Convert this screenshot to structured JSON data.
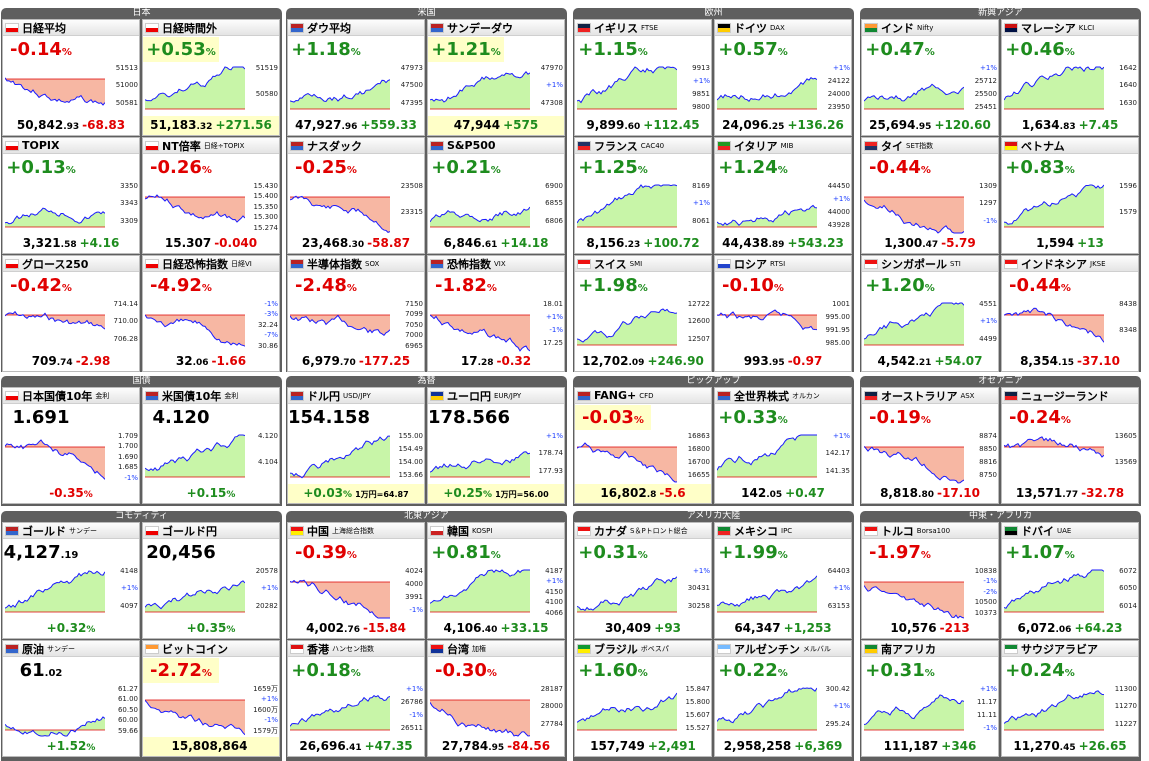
{
  "colors": {
    "up": "#1e8c1e",
    "down": "#e00000",
    "line": "#1a1aff",
    "fill_up": "#c8f5a8",
    "fill_down": "#f7b7a3",
    "header": "#5f5f5f",
    "highlight": "#ffffc8"
  },
  "groups": [
    {
      "title": "日本",
      "tiles": [
        {
          "name": "日経平均",
          "sub": "",
          "flag": "jp-flag",
          "change": "-0.14",
          "price_main": "50,842",
          "price_dec": ".93",
          "price_change": "-68.83",
          "trend": "down",
          "axis": [
            "51513",
            "51000",
            "50581"
          ],
          "hl": false
        },
        {
          "name": "日経時間外",
          "sub": "",
          "flag": "jp-flag",
          "change": "+0.53",
          "price_main": "51,183",
          "price_dec": ".32",
          "price_change": "+271.56",
          "trend": "up",
          "axis": [
            "51519",
            "50580"
          ],
          "hl": true
        },
        {
          "name": "TOPIX",
          "sub": "",
          "flag": "jp-flag",
          "change": "+0.13",
          "price_main": "3,321",
          "price_dec": ".58",
          "price_change": "+4.16",
          "trend": "up",
          "axis": [
            "3350",
            "3343",
            "3309"
          ],
          "hl": false
        },
        {
          "name": "NT倍率",
          "sub": "日経÷TOPIX",
          "flag": "jp-flag",
          "change": "-0.26",
          "price_main": "15.307",
          "price_dec": "",
          "price_change": "-0.040",
          "trend": "down",
          "axis": [
            "15.430",
            "15.400",
            "15.350",
            "15.300",
            "15.274"
          ],
          "hl": false
        },
        {
          "name": "グロース250",
          "sub": "",
          "flag": "jp-flag",
          "change": "-0.42",
          "price_main": "709",
          "price_dec": ".74",
          "price_change": "-2.98",
          "trend": "down",
          "axis": [
            "714.14",
            "710.00",
            "706.28"
          ],
          "hl": false
        },
        {
          "name": "日経恐怖指数",
          "sub": "日経VI",
          "flag": "jp-flag",
          "change": "-4.92",
          "price_main": "32",
          "price_dec": ".06",
          "price_change": "-1.66",
          "trend": "down",
          "axis": [
            "-1%",
            "-3%",
            "32.24",
            "-7%",
            "30.86"
          ],
          "hl": false
        }
      ]
    },
    {
      "title": "米国",
      "tiles": [
        {
          "name": "ダウ平均",
          "sub": "",
          "flag": "us-flag",
          "change": "+1.18",
          "price_main": "47,927",
          "price_dec": ".96",
          "price_change": "+559.33",
          "trend": "up",
          "axis": [
            "47973",
            "47500",
            "47395"
          ],
          "hl": false
        },
        {
          "name": "サンデーダウ",
          "sub": "",
          "flag": "us-flag",
          "change": "+1.21",
          "price_main": "47,944",
          "price_dec": "",
          "price_change": "+575",
          "trend": "up",
          "axis": [
            "47970",
            "+1%",
            "47308"
          ],
          "hl": true
        },
        {
          "name": "ナスダック",
          "sub": "",
          "flag": "us-flag",
          "change": "-0.25",
          "price_main": "23,468",
          "price_dec": ".30",
          "price_change": "-58.87",
          "trend": "down",
          "axis": [
            "23508",
            "23315"
          ],
          "hl": false
        },
        {
          "name": "S&P500",
          "sub": "",
          "flag": "us-flag",
          "change": "+0.21",
          "price_main": "6,846",
          "price_dec": ".61",
          "price_change": "+14.18",
          "trend": "up",
          "axis": [
            "6900",
            "6855",
            "6806"
          ],
          "hl": false
        },
        {
          "name": "半導体指数",
          "sub": "SOX",
          "flag": "us-flag",
          "change": "-2.48",
          "price_main": "6,979",
          "price_dec": ".70",
          "price_change": "-177.25",
          "trend": "down",
          "axis": [
            "7150",
            "7099",
            "7050",
            "7000",
            "6965"
          ],
          "hl": false
        },
        {
          "name": "恐怖指数",
          "sub": "VIX",
          "flag": "us-flag",
          "change": "-1.82",
          "price_main": "17",
          "price_dec": ".28",
          "price_change": "-0.32",
          "trend": "down",
          "axis": [
            "18.01",
            "+1%",
            "-1%",
            "17.25"
          ],
          "hl": false
        }
      ]
    },
    {
      "title": "欧州",
      "tiles": [
        {
          "name": "イギリス",
          "sub": "FTSE",
          "flag": "uk-flag",
          "change": "+1.15",
          "price_main": "9,899",
          "price_dec": ".60",
          "price_change": "+112.45",
          "trend": "up",
          "axis": [
            "9913",
            "+1%",
            "9851",
            "9800"
          ],
          "hl": false
        },
        {
          "name": "ドイツ",
          "sub": "DAX",
          "flag": "de-flag",
          "change": "+0.57",
          "price_main": "24,096",
          "price_dec": ".25",
          "price_change": "+136.26",
          "trend": "up",
          "axis": [
            "+1%",
            "24122",
            "24000",
            "23950"
          ],
          "hl": false
        },
        {
          "name": "フランス",
          "sub": "CAC40",
          "flag": "fr-flag",
          "change": "+1.25",
          "price_main": "8,156",
          "price_dec": ".23",
          "price_change": "+100.72",
          "trend": "up",
          "axis": [
            "8169",
            "+1%",
            "8061"
          ],
          "hl": false
        },
        {
          "name": "イタリア",
          "sub": "MIB",
          "flag": "it-flag",
          "change": "+1.24",
          "price_main": "44,438",
          "price_dec": ".89",
          "price_change": "+543.23",
          "trend": "up",
          "axis": [
            "44450",
            "+1%",
            "44000",
            "43928"
          ],
          "hl": false
        },
        {
          "name": "スイス",
          "sub": "SMI",
          "flag": "ch-flag",
          "change": "+1.98",
          "price_main": "12,702",
          "price_dec": ".09",
          "price_change": "+246.90",
          "trend": "up",
          "axis": [
            "12722",
            "12600",
            "12507"
          ],
          "hl": false
        },
        {
          "name": "ロシア",
          "sub": "RTSI",
          "flag": "ru-flag",
          "change": "-0.10",
          "price_main": "993",
          "price_dec": ".95",
          "price_change": "-0.97",
          "trend": "down",
          "axis": [
            "1001",
            "995.00",
            "991.95",
            "985.00"
          ],
          "hl": false
        }
      ]
    },
    {
      "title": "新興アジア",
      "tiles": [
        {
          "name": "インド",
          "sub": "Nifty",
          "flag": "in-flag",
          "change": "+0.47",
          "price_main": "25,694",
          "price_dec": ".95",
          "price_change": "+120.60",
          "trend": "up",
          "axis": [
            "+1%",
            "25712",
            "25500",
            "25451"
          ],
          "hl": false
        },
        {
          "name": "マレーシア",
          "sub": "KLCI",
          "flag": "my-flag",
          "change": "+0.46",
          "price_main": "1,634",
          "price_dec": ".83",
          "price_change": "+7.45",
          "trend": "up",
          "axis": [
            "1642",
            "1640",
            "1630"
          ],
          "hl": false
        },
        {
          "name": "タイ",
          "sub": "SET指数",
          "flag": "th-flag",
          "change": "-0.44",
          "price_main": "1,300",
          "price_dec": ".47",
          "price_change": "-5.79",
          "trend": "down",
          "axis": [
            "1309",
            "1297",
            "-1%"
          ],
          "hl": false
        },
        {
          "name": "ベトナム",
          "sub": "",
          "flag": "vn-flag",
          "change": "+0.83",
          "price_main": "1,594",
          "price_dec": "",
          "price_change": "+13",
          "trend": "up",
          "axis": [
            "1596",
            "1579"
          ],
          "hl": false
        },
        {
          "name": "シンガポール",
          "sub": "STI",
          "flag": "sg-flag",
          "change": "+1.20",
          "price_main": "4,542",
          "price_dec": ".21",
          "price_change": "+54.07",
          "trend": "up",
          "axis": [
            "4551",
            "+1%",
            "4499"
          ],
          "hl": false
        },
        {
          "name": "インドネシア",
          "sub": "JKSE",
          "flag": "id-flag",
          "change": "-0.44",
          "price_main": "8,354",
          "price_dec": ".15",
          "price_change": "-37.10",
          "trend": "down",
          "axis": [
            "8438",
            "8348"
          ],
          "hl": false
        }
      ]
    },
    {
      "title": "国債",
      "tiles": [
        {
          "name": "日本国債10年",
          "sub": "金利",
          "flag": "jp-flag",
          "change": "1.691",
          "price_main": "-0.35",
          "price_dec": "%",
          "price_change": "",
          "trend": "down",
          "axis": [
            "1.709",
            "1.700",
            "1.690",
            "1.685",
            "-1%"
          ],
          "hl": false,
          "level": true
        },
        {
          "name": "米国債10年",
          "sub": "金利",
          "flag": "us-flag",
          "change": "4.120",
          "price_main": "+0.15",
          "price_dec": "%",
          "price_change": "",
          "trend": "up",
          "axis": [
            "4.120",
            "4.104"
          ],
          "hl": false,
          "level": true
        }
      ]
    },
    {
      "title": "為替",
      "tiles": [
        {
          "name": "ドル円",
          "sub": "USD/JPY",
          "flag": "us-flag",
          "change": "154.158",
          "price_main": "+0.03",
          "price_dec": "%",
          "price_change": "",
          "note": "1万円=64.87",
          "trend": "up",
          "axis": [
            "155.00",
            "154.49",
            "154.00",
            "153.66"
          ],
          "hl": true,
          "level": true
        },
        {
          "name": "ユーロ円",
          "sub": "EUR/JPY",
          "flag": "eu-flag",
          "change": "178.566",
          "price_main": "+0.25",
          "price_dec": "%",
          "price_change": "",
          "note": "1万円=56.00",
          "trend": "up",
          "axis": [
            "+1%",
            "178.74",
            "177.93"
          ],
          "hl": true,
          "level": true
        }
      ]
    },
    {
      "title": "ピックアップ",
      "tiles": [
        {
          "name": "FANG+",
          "sub": "CFD",
          "flag": "us-flag",
          "change": "-0.03",
          "price_main": "16,802",
          "price_dec": ".8",
          "price_change": "-5.6",
          "trend": "down",
          "axis": [
            "16863",
            "16800",
            "16700",
            "16655"
          ],
          "hl": true
        },
        {
          "name": "全世界株式",
          "sub": "オルカン",
          "flag": "us-flag",
          "change": "+0.33",
          "price_main": "142",
          "price_dec": ".05",
          "price_change": "+0.47",
          "trend": "up",
          "axis": [
            "+1%",
            "142.17",
            "141.35"
          ],
          "hl": false
        }
      ]
    },
    {
      "title": "オセアニア",
      "tiles": [
        {
          "name": "オーストラリア",
          "sub": "ASX",
          "flag": "au-flag",
          "change": "-0.19",
          "price_main": "8,818",
          "price_dec": ".80",
          "price_change": "-17.10",
          "trend": "down",
          "axis": [
            "8874",
            "8850",
            "8816",
            "8750"
          ],
          "hl": false
        },
        {
          "name": "ニュージーランド",
          "sub": "",
          "flag": "nz-flag",
          "change": "-0.24",
          "price_main": "13,571",
          "price_dec": ".77",
          "price_change": "-32.78",
          "trend": "down",
          "axis": [
            "13605",
            "13569"
          ],
          "hl": false
        }
      ]
    },
    {
      "title": "コモディティ",
      "tiles": [
        {
          "name": "ゴールド",
          "sub": "サンデー",
          "flag": "us-flag",
          "change": "4,127",
          "change_dec": ".19",
          "price_main": "+0.32",
          "price_dec": "%",
          "price_change": "",
          "trend": "up",
          "axis": [
            "4148",
            "+1%",
            "4097"
          ],
          "hl": false,
          "level": true
        },
        {
          "name": "ゴールド円",
          "sub": "",
          "flag": "jp-flag",
          "change": "20,456",
          "price_main": "+0.35",
          "price_dec": "%",
          "price_change": "",
          "trend": "up",
          "axis": [
            "20578",
            "+1%",
            "20282"
          ],
          "hl": false,
          "level": true
        },
        {
          "name": "原油",
          "sub": "サンデー",
          "flag": "us-flag",
          "change": "61",
          "change_dec": ".02",
          "price_main": "+1.52",
          "price_dec": "%",
          "price_change": "",
          "trend": "up",
          "axis": [
            "61.27",
            "61.00",
            "60.50",
            "60.00",
            "59.66"
          ],
          "hl": false,
          "level": true
        },
        {
          "name": "ビットコイン",
          "sub": "",
          "flag": "btc-flag",
          "change": "-2.72",
          "price_main": "15,808,864",
          "price_dec": "",
          "price_change": "",
          "trend": "down",
          "axis": [
            "1659万",
            "+1%",
            "1600万",
            "-1%",
            "1579万"
          ],
          "hl": true
        }
      ]
    },
    {
      "title": "北東アジア",
      "tiles": [
        {
          "name": "中国",
          "sub": "上海総合指数",
          "flag": "cn-flag",
          "change": "-0.39",
          "price_main": "4,002",
          "price_dec": ".76",
          "price_change": "-15.84",
          "trend": "down",
          "axis": [
            "4024",
            "4000",
            "3991",
            "-1%"
          ],
          "hl": false
        },
        {
          "name": "韓国",
          "sub": "KOSPI",
          "flag": "kr-flag",
          "change": "+0.81",
          "price_main": "4,106",
          "price_dec": ".40",
          "price_change": "+33.15",
          "trend": "up",
          "axis": [
            "4187",
            "+1%",
            "4150",
            "4100",
            "4066"
          ],
          "hl": false
        },
        {
          "name": "香港",
          "sub": "ハンセン指数",
          "flag": "hk-flag",
          "change": "+0.18",
          "price_main": "26,696",
          "price_dec": ".41",
          "price_change": "+47.35",
          "trend": "up",
          "axis": [
            "+1%",
            "26786",
            "-1%",
            "26511"
          ],
          "hl": false
        },
        {
          "name": "台湾",
          "sub": "加権",
          "flag": "tw-flag",
          "change": "-0.30",
          "price_main": "27,784",
          "price_dec": ".95",
          "price_change": "-84.56",
          "trend": "down",
          "axis": [
            "28187",
            "28000",
            "27784"
          ],
          "hl": false
        }
      ]
    },
    {
      "title": "アメリカ大陸",
      "tiles": [
        {
          "name": "カナダ",
          "sub": "S＆Pトロント総合",
          "flag": "ca-flag",
          "change": "+0.31",
          "price_main": "30,409",
          "price_dec": "",
          "price_change": "+93",
          "trend": "up",
          "axis": [
            "+1%",
            "30431",
            "30258"
          ],
          "hl": false
        },
        {
          "name": "メキシコ",
          "sub": "IPC",
          "flag": "mx-flag",
          "change": "+1.99",
          "price_main": "64,347",
          "price_dec": "",
          "price_change": "+1,253",
          "trend": "up",
          "axis": [
            "64403",
            "+1%",
            "63153"
          ],
          "hl": false
        },
        {
          "name": "ブラジル",
          "sub": "ボベスパ",
          "flag": "br-flag",
          "change": "+1.60",
          "price_main": "157,749",
          "price_dec": "",
          "price_change": "+2,491",
          "trend": "up",
          "axis": [
            "15.847",
            "15.800",
            "15.607",
            "15.527"
          ],
          "hl": false
        },
        {
          "name": "アルゼンチン",
          "sub": "メルバル",
          "flag": "ar-flag",
          "change": "+0.22",
          "price_main": "2,958,258",
          "price_dec": "",
          "price_change": "+6,369",
          "trend": "up",
          "axis": [
            "300.42",
            "+1%",
            "295.24"
          ],
          "hl": false
        }
      ]
    },
    {
      "title": "中東・アフリカ",
      "tiles": [
        {
          "name": "トルコ",
          "sub": "Borsa100",
          "flag": "tr-flag",
          "change": "-1.97",
          "price_main": "10,576",
          "price_dec": "",
          "price_change": "-213",
          "trend": "down",
          "axis": [
            "10838",
            "-1%",
            "-2%",
            "10500",
            "10373"
          ],
          "hl": false
        },
        {
          "name": "ドバイ",
          "sub": "UAE",
          "flag": "ae-flag",
          "change": "+1.07",
          "price_main": "6,072",
          "price_dec": ".06",
          "price_change": "+64.23",
          "trend": "up",
          "axis": [
            "6072",
            "6050",
            "6014"
          ],
          "hl": false
        },
        {
          "name": "南アフリカ",
          "sub": "",
          "flag": "za-flag",
          "change": "+0.31",
          "price_main": "111,187",
          "price_dec": "",
          "price_change": "+346",
          "trend": "up",
          "axis": [
            "+1%",
            "11.17",
            "11.11",
            "-1%"
          ],
          "hl": false
        },
        {
          "name": "サウジアラビア",
          "sub": "",
          "flag": "sa-flag",
          "change": "+0.24",
          "price_main": "11,270",
          "price_dec": ".45",
          "price_change": "+26.65",
          "trend": "up",
          "axis": [
            "11300",
            "11270",
            "11227"
          ],
          "hl": false
        }
      ]
    }
  ]
}
